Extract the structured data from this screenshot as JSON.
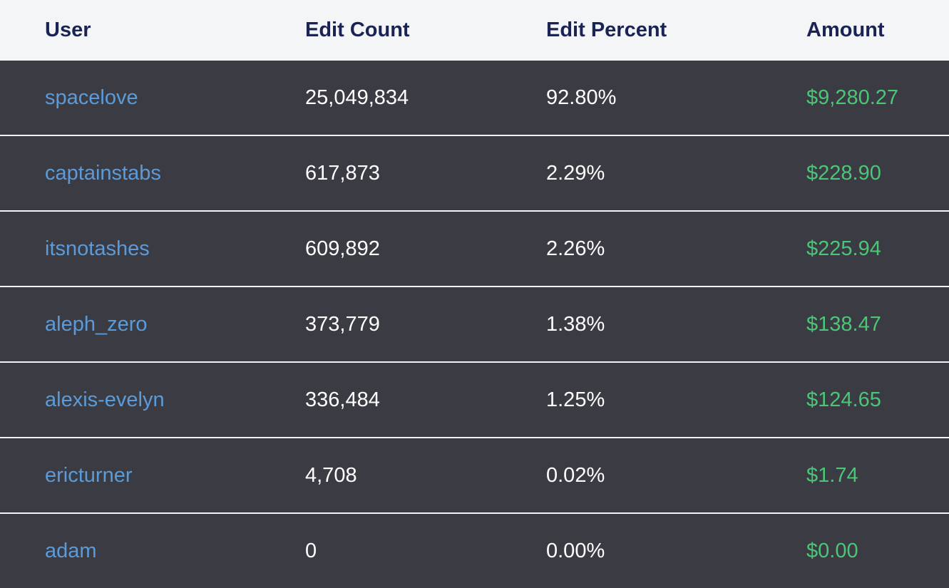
{
  "table": {
    "columns": [
      {
        "id": "user",
        "label": "User"
      },
      {
        "id": "edit_count",
        "label": "Edit Count"
      },
      {
        "id": "edit_percent",
        "label": "Edit Percent"
      },
      {
        "id": "amount",
        "label": "Amount"
      }
    ],
    "rows": [
      {
        "user": "spacelove",
        "edit_count": "25,049,834",
        "edit_percent": "92.80%",
        "amount": "$9,280.27"
      },
      {
        "user": "captainstabs",
        "edit_count": "617,873",
        "edit_percent": "2.29%",
        "amount": "$228.90"
      },
      {
        "user": "itsnotashes",
        "edit_count": "609,892",
        "edit_percent": "2.26%",
        "amount": "$225.94"
      },
      {
        "user": "aleph_zero",
        "edit_count": "373,779",
        "edit_percent": "1.38%",
        "amount": "$138.47"
      },
      {
        "user": "alexis-evelyn",
        "edit_count": "336,484",
        "edit_percent": "1.25%",
        "amount": "$124.65"
      },
      {
        "user": "ericturner",
        "edit_count": "4,708",
        "edit_percent": "0.02%",
        "amount": "$1.74"
      },
      {
        "user": "adam",
        "edit_count": "0",
        "edit_percent": "0.00%",
        "amount": "$0.00"
      }
    ]
  },
  "colors": {
    "header_bg": "#f4f5f7",
    "header_text": "#1a2353",
    "row_bg": "#3b3b43",
    "row_divider": "#f2f3f5",
    "cell_text": "#ffffff",
    "username_link": "#5b9bd9",
    "amount_green": "#4bc676"
  }
}
